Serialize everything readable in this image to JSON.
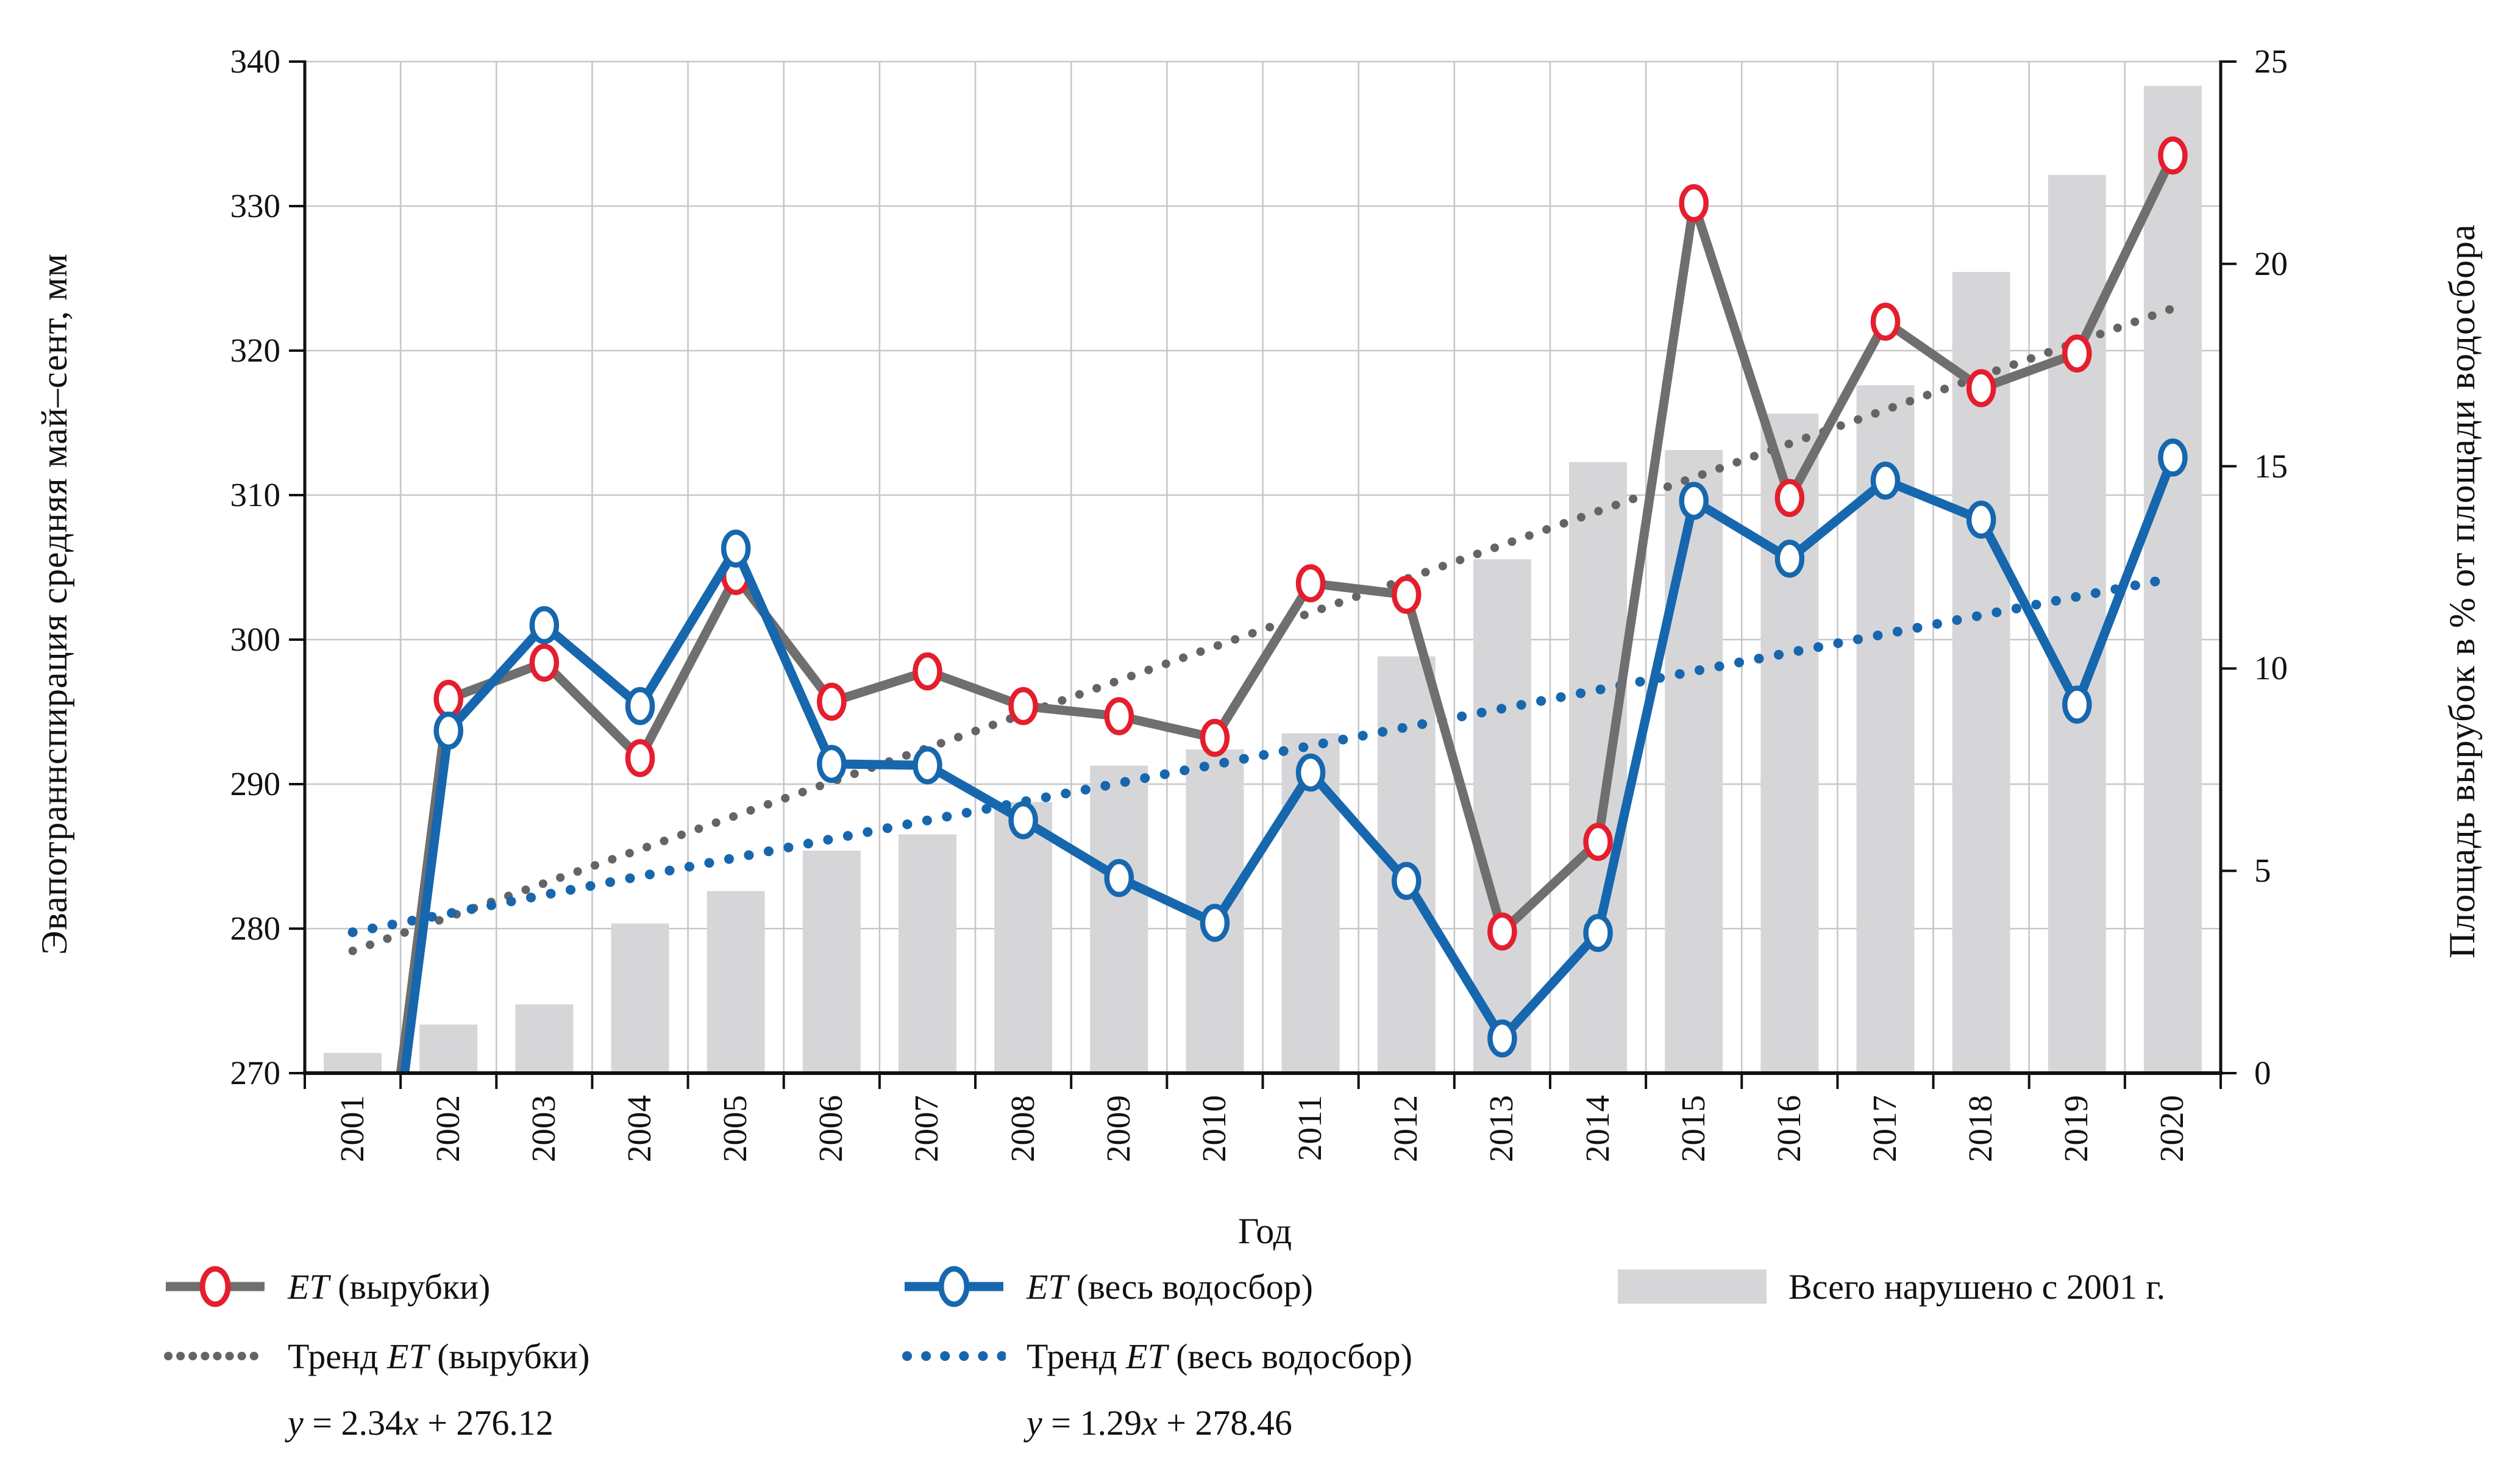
{
  "figure": {
    "left_axis": {
      "title": "Эвапотраннспирация средняя май–сент, мм",
      "min": 270,
      "max": 340,
      "ticks": [
        340,
        330,
        320,
        310,
        300,
        290,
        280,
        270
      ]
    },
    "right_axis": {
      "title": "Площадь вырубок в % от площади водосбора",
      "min": 0,
      "max": 25,
      "ticks": [
        25,
        20,
        15,
        10,
        5,
        0
      ]
    },
    "x_axis": {
      "title": "Год"
    }
  },
  "chart_data": {
    "type": "composite",
    "x": [
      2001,
      2002,
      2003,
      2004,
      2005,
      2006,
      2007,
      2008,
      2009,
      2010,
      2011,
      2012,
      2013,
      2014,
      2015,
      2016,
      2017,
      2018,
      2019,
      2020
    ],
    "series": [
      {
        "name": "ET (вырубки)",
        "type": "line",
        "axis": "left",
        "line_color": "#6f6f6f",
        "marker_color": "#e41e2d",
        "values": [
          244.0,
          295.9,
          298.4,
          291.8,
          304.4,
          295.7,
          297.8,
          295.4,
          294.7,
          293.2,
          303.9,
          303.1,
          279.8,
          286.0,
          330.2,
          309.8,
          322.0,
          317.4,
          319.8,
          333.5
        ]
      },
      {
        "name": "ET (весь водосбор)",
        "type": "line",
        "axis": "left",
        "line_color": "#1667ae",
        "marker_color": "#1667ae",
        "values": [
          242.0,
          293.7,
          301.0,
          295.4,
          306.3,
          291.4,
          291.3,
          287.5,
          283.5,
          280.4,
          290.8,
          283.3,
          272.4,
          279.7,
          309.6,
          305.6,
          311.0,
          308.3,
          295.5,
          312.6
        ]
      },
      {
        "name": "Всего нарушено с 2001 г.",
        "type": "bar",
        "axis": "right",
        "color": "#d6d6d9",
        "values": [
          0.5,
          1.2,
          1.7,
          3.7,
          4.5,
          5.5,
          5.9,
          6.7,
          7.6,
          8.0,
          8.4,
          10.3,
          12.7,
          15.1,
          15.4,
          16.3,
          17.0,
          19.8,
          22.2,
          24.4
        ]
      },
      {
        "name": "Тренд ET (вырубки)",
        "type": "trend",
        "axis": "left",
        "color": "#646464",
        "equation": "y = 2.34x + 276.12",
        "slope": 2.34,
        "intercept": 276.12
      },
      {
        "name": "Тренд ET (весь водосбор)",
        "type": "trend",
        "axis": "left",
        "color": "#1667ae",
        "equation": "y = 1.29x + 278.46",
        "slope": 1.29,
        "intercept": 278.46
      }
    ],
    "ylim_left": [
      270,
      340
    ],
    "ylim_right": [
      0,
      25
    ],
    "grid": "on",
    "legend_position": "bottom",
    "note": "2001 line values lie below the 270 mm axis minimum; both curves are clipped by the bottom axis."
  },
  "legend": {
    "et_cut": {
      "et": "ET",
      "rest": " (вырубки)"
    },
    "et_all": {
      "et": "ET",
      "rest": " (весь водосбор)"
    },
    "bars_label": "Всего нарушено с 2001 г.",
    "trend_cut": {
      "pre": "Тренд ",
      "et": "ET",
      "rest": " (вырубки)"
    },
    "trend_all": {
      "pre": "Тренд ",
      "et": "ET",
      "rest": " (весь водосбор)"
    },
    "eq_cut": {
      "y": "y",
      "mid": " = 2.34",
      "x": "x",
      "tail": " + 276.12"
    },
    "eq_all": {
      "y": "y",
      "mid": " = 1.29",
      "x": "x",
      "tail": " + 278.46"
    }
  },
  "colors": {
    "grid": "#c7c7ca",
    "axis": "#111111",
    "bar": "#d6d6d9",
    "gray_line": "#6f6f6f",
    "blue_line": "#1667ae",
    "red_marker": "#e41e2d"
  }
}
